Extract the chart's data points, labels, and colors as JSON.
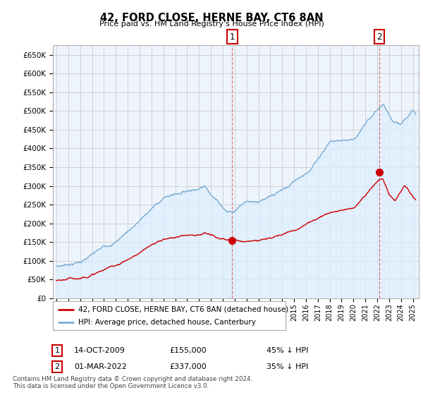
{
  "title": "42, FORD CLOSE, HERNE BAY, CT6 8AN",
  "subtitle": "Price paid vs. HM Land Registry's House Price Index (HPI)",
  "ylim": [
    0,
    675000
  ],
  "xlim_start": 1994.7,
  "xlim_end": 2025.5,
  "transaction1": {
    "date": "14-OCT-2009",
    "price": 155000,
    "label": "1",
    "x": 2009.79
  },
  "transaction2": {
    "date": "01-MAR-2022",
    "price": 337000,
    "label": "2",
    "x": 2022.17
  },
  "legend_entry1": "42, FORD CLOSE, HERNE BAY, CT6 8AN (detached house)",
  "legend_entry2": "HPI: Average price, detached house, Canterbury",
  "footnote1": "Contains HM Land Registry data © Crown copyright and database right 2024.",
  "footnote2": "This data is licensed under the Open Government Licence v3.0.",
  "house_color": "#cc0000",
  "hpi_color": "#7aadd4",
  "hpi_fill_color": "#ddeeff",
  "grid_color": "#cccccc",
  "background_color": "#ffffff",
  "plot_bg_color": "#eef4fb"
}
